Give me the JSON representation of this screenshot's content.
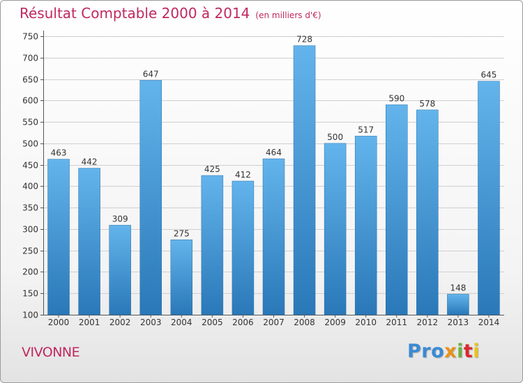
{
  "title": "Résultat Comptable 2000 à 2014",
  "subtitle": "(en milliers d'€)",
  "place": "VIVONNE",
  "logo": {
    "p1": "Pro",
    "p2": "x",
    "p3": "i",
    "p4": "t",
    "p5": "i"
  },
  "colors": {
    "accent": "#c0285f",
    "bar_light": "#63b4ec",
    "bar_dark": "#2a78b8"
  },
  "chart_data": {
    "type": "bar",
    "categories": [
      "2000",
      "2001",
      "2002",
      "2003",
      "2004",
      "2005",
      "2006",
      "2007",
      "2008",
      "2009",
      "2010",
      "2011",
      "2012",
      "2013",
      "2014"
    ],
    "values": [
      463,
      442,
      309,
      647,
      275,
      425,
      412,
      464,
      728,
      500,
      517,
      590,
      578,
      148,
      645
    ],
    "ylim": [
      100,
      750
    ],
    "yticks": [
      100,
      150,
      200,
      250,
      300,
      350,
      400,
      450,
      500,
      550,
      600,
      650,
      700,
      750
    ],
    "grid": true,
    "data_labels": true
  }
}
